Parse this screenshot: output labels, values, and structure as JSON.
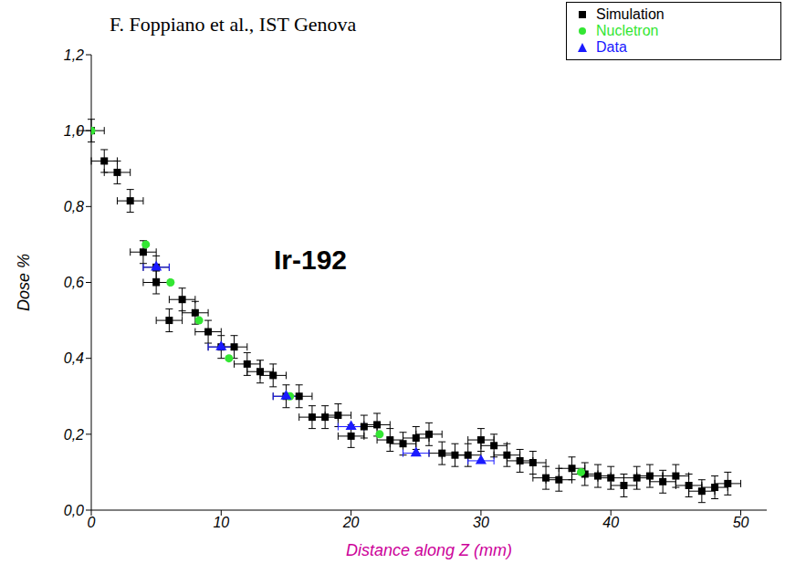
{
  "chart_data": {
    "type": "scatter",
    "title": "F. Foppiano et al., IST Genova",
    "annotations": [
      "Ir-192"
    ],
    "x_label": "Distance along Z (mm)",
    "y_label": "Dose %",
    "xlim": [
      0,
      52
    ],
    "xticks": [
      0,
      10,
      20,
      30,
      40,
      50
    ],
    "ylim": [
      0,
      1.2
    ],
    "yticks": [
      {
        "value": 0,
        "label": "0,0"
      },
      {
        "value": 0.2,
        "label": "0,2"
      },
      {
        "value": 0.4,
        "label": "0,4"
      },
      {
        "value": 0.6,
        "label": "0,6"
      },
      {
        "value": 0.8,
        "label": "0,8"
      },
      {
        "value": 1.0,
        "label": "1,0"
      },
      {
        "value": 1.2,
        "label": "1,2"
      }
    ],
    "legend": "top-right",
    "series": [
      {
        "name": "Simulation",
        "color": "#000000",
        "marker": "square",
        "x": [
          0,
          1,
          2,
          3,
          4,
          5,
          5,
          6,
          7,
          8,
          9,
          10,
          11,
          12,
          13,
          14,
          15,
          16,
          17,
          18,
          19,
          20,
          21,
          22,
          23,
          24,
          25,
          26,
          27,
          28,
          29,
          30,
          31,
          32,
          33,
          34,
          35,
          36,
          37,
          38,
          39,
          40,
          41,
          42,
          43,
          44,
          45,
          46,
          47,
          48,
          49
        ],
        "values": [
          1.0,
          0.92,
          0.89,
          0.815,
          0.68,
          0.64,
          0.6,
          0.5,
          0.555,
          0.52,
          0.47,
          0.43,
          0.43,
          0.385,
          0.365,
          0.355,
          0.3,
          0.3,
          0.245,
          0.245,
          0.25,
          0.195,
          0.22,
          0.225,
          0.185,
          0.175,
          0.19,
          0.2,
          0.15,
          0.145,
          0.145,
          0.185,
          0.17,
          0.145,
          0.13,
          0.125,
          0.085,
          0.08,
          0.11,
          0.095,
          0.09,
          0.085,
          0.065,
          0.085,
          0.09,
          0.075,
          0.09,
          0.065,
          0.05,
          0.06,
          0.07
        ],
        "x_error": 1,
        "y_error": 0.03
      },
      {
        "name": "Nucletron",
        "color": "#33e633",
        "marker": "circle",
        "x": [
          0,
          4.2,
          6.1,
          8.3,
          10.6,
          15.3,
          22.2,
          37.7
        ],
        "values": [
          1.0,
          0.7,
          0.6,
          0.5,
          0.4,
          0.3,
          0.2,
          0.1
        ]
      },
      {
        "name": "Data",
        "color": "#1a1aff",
        "marker": "triangle",
        "x": [
          5,
          10,
          15,
          20,
          25,
          30
        ],
        "values": [
          0.64,
          0.43,
          0.3,
          0.22,
          0.15,
          0.13
        ],
        "x_error": 1
      }
    ]
  }
}
